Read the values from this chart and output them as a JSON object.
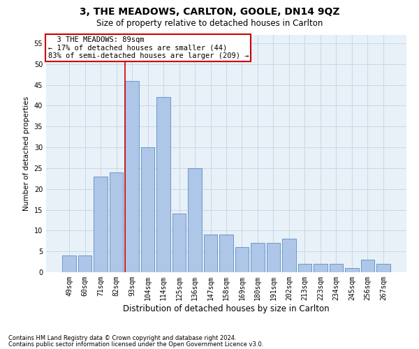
{
  "title": "3, THE MEADOWS, CARLTON, GOOLE, DN14 9QZ",
  "subtitle": "Size of property relative to detached houses in Carlton",
  "xlabel": "Distribution of detached houses by size in Carlton",
  "ylabel": "Number of detached properties",
  "categories": [
    "49sqm",
    "60sqm",
    "71sqm",
    "82sqm",
    "93sqm",
    "104sqm",
    "114sqm",
    "125sqm",
    "136sqm",
    "147sqm",
    "158sqm",
    "169sqm",
    "180sqm",
    "191sqm",
    "202sqm",
    "213sqm",
    "223sqm",
    "234sqm",
    "245sqm",
    "256sqm",
    "267sqm"
  ],
  "values": [
    4,
    4,
    23,
    24,
    46,
    30,
    42,
    14,
    25,
    9,
    9,
    6,
    7,
    7,
    8,
    2,
    2,
    2,
    1,
    3,
    2
  ],
  "bar_color": "#aec6e8",
  "bar_edge_color": "#5a8fc2",
  "grid_color": "#c8d8e8",
  "background_color": "#e8f0f8",
  "property_label": "3 THE MEADOWS: 89sqm",
  "pct_smaller": "17% of detached houses are smaller (44)",
  "pct_larger": "83% of semi-detached houses are larger (209)",
  "vline_index": 4,
  "ylim": [
    0,
    57
  ],
  "yticks": [
    0,
    5,
    10,
    15,
    20,
    25,
    30,
    35,
    40,
    45,
    50,
    55
  ],
  "footer1": "Contains HM Land Registry data © Crown copyright and database right 2024.",
  "footer2": "Contains public sector information licensed under the Open Government Licence v3.0.",
  "box_color": "#cc0000",
  "vline_color": "#cc0000",
  "title_fontsize": 10,
  "subtitle_fontsize": 8.5,
  "xlabel_fontsize": 8.5,
  "ylabel_fontsize": 7.5,
  "tick_fontsize": 7,
  "annot_fontsize": 7.5,
  "footer_fontsize": 6
}
